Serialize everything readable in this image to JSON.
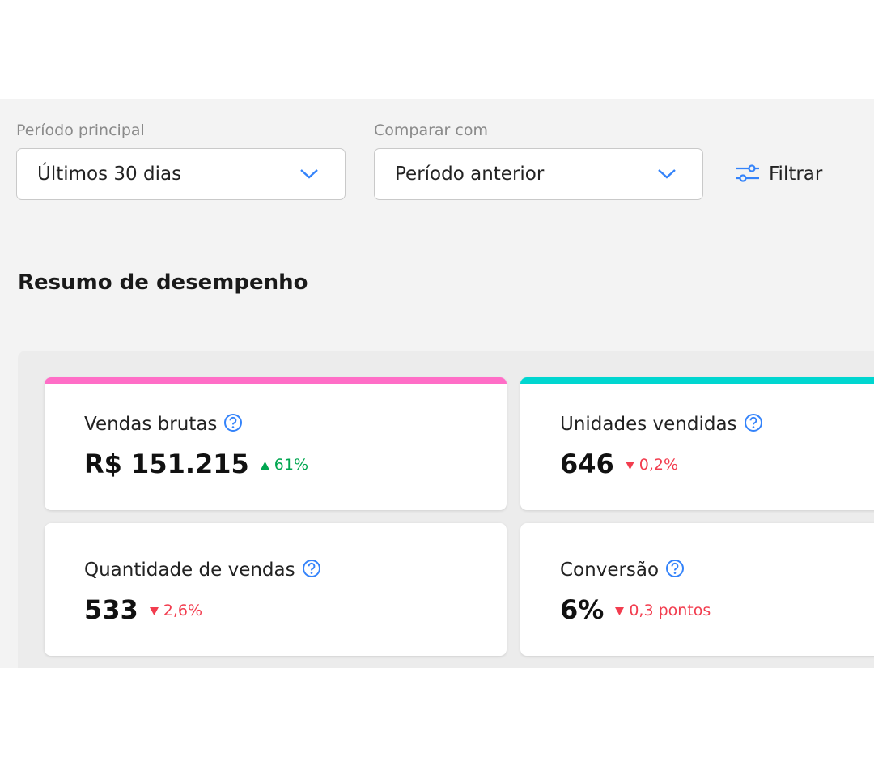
{
  "filters": {
    "main_period": {
      "label": "Período principal",
      "value": "Últimos 30 dias"
    },
    "compare": {
      "label": "Comparar com",
      "value": "Período anterior"
    },
    "filter_button": "Filtrar"
  },
  "section_title": "Resumo de desempenho",
  "cards": [
    {
      "title": "Vendas brutas",
      "value": "R$ 151.215",
      "change": "61%",
      "trend": "up",
      "accent": "#ff6ec7"
    },
    {
      "title": "Unidades vendidas",
      "value": "646",
      "change": "0,2%",
      "trend": "down",
      "accent": "#00d6d0"
    },
    {
      "title": "Quantidade de vendas",
      "value": "533",
      "change": "2,6%",
      "trend": "down"
    },
    {
      "title": "Conversão",
      "value": "6%",
      "change": "0,3 pontos",
      "trend": "down"
    }
  ]
}
